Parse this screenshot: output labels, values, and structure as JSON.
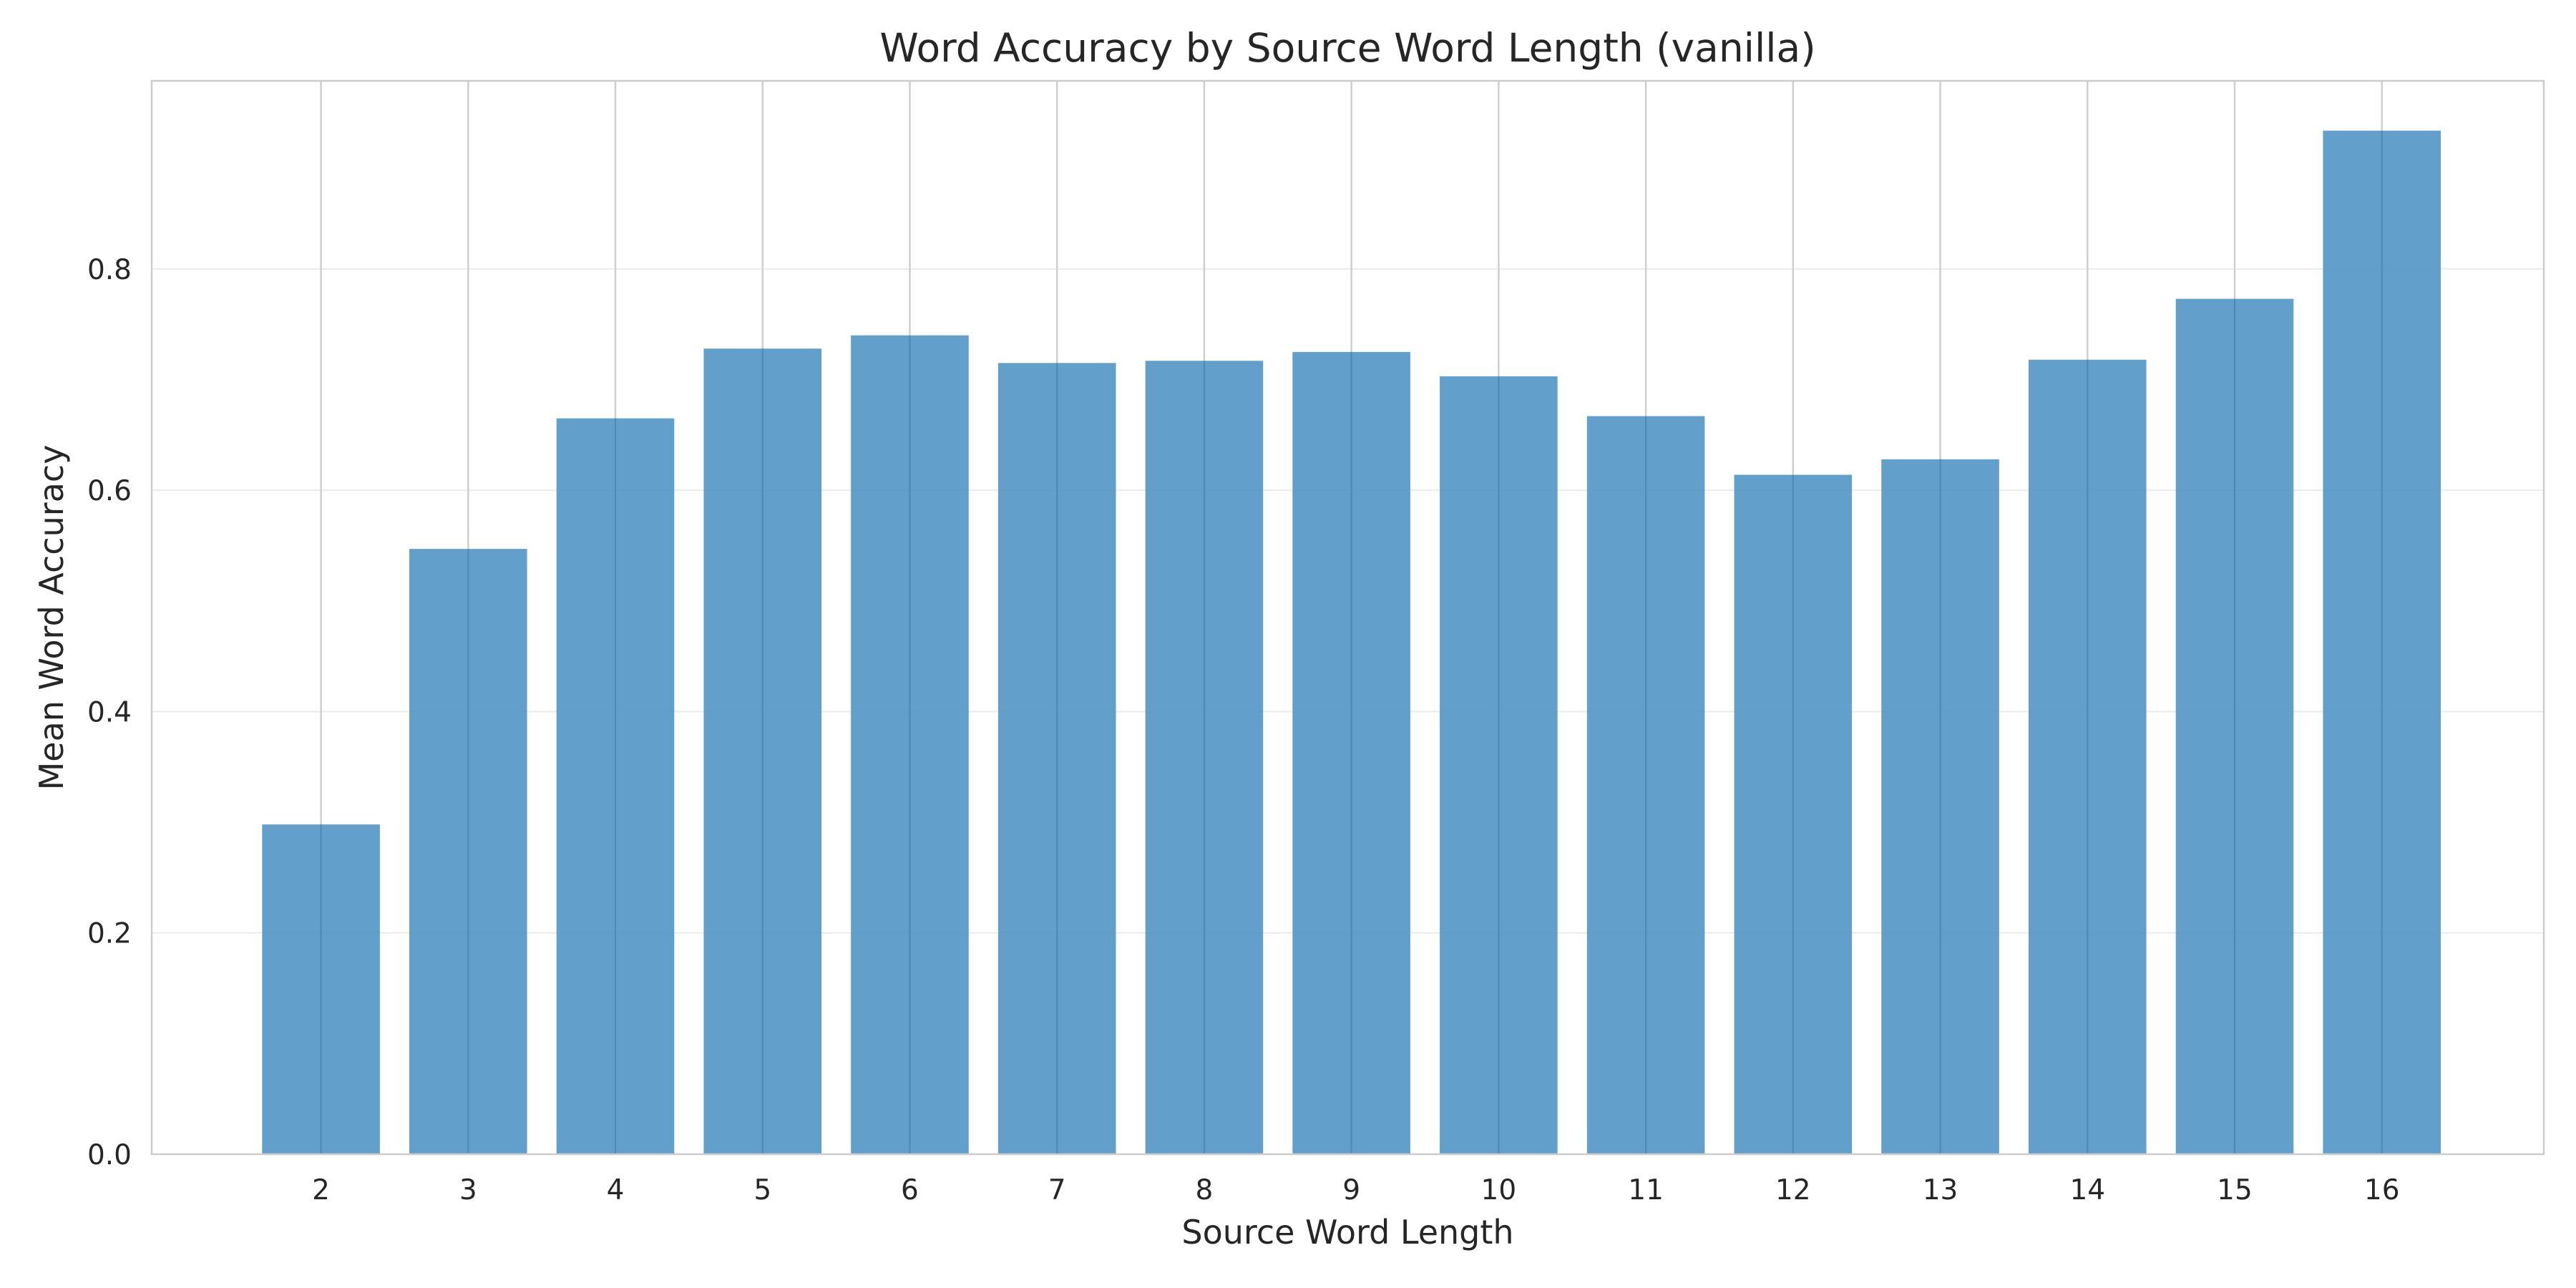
{
  "chart_data": {
    "type": "bar",
    "title": "Word Accuracy by Source Word Length (vanilla)",
    "xlabel": "Source Word Length",
    "ylabel": "Mean Word Accuracy",
    "categories": [
      "2",
      "3",
      "4",
      "5",
      "6",
      "7",
      "8",
      "9",
      "10",
      "11",
      "12",
      "13",
      "14",
      "15",
      "16"
    ],
    "values": [
      0.298,
      0.547,
      0.665,
      0.728,
      0.74,
      0.715,
      0.717,
      0.725,
      0.703,
      0.667,
      0.614,
      0.628,
      0.718,
      0.773,
      0.925
    ],
    "yticks": [
      0.0,
      0.2,
      0.4,
      0.6,
      0.8
    ],
    "ytick_labels": [
      "0.0",
      "0.2",
      "0.4",
      "0.6",
      "0.8"
    ],
    "ylim": [
      0,
      0.97
    ],
    "xlim": [
      0.85,
      17.1
    ],
    "bar_color": "#4c92c3",
    "grid": true,
    "legend": "none"
  }
}
